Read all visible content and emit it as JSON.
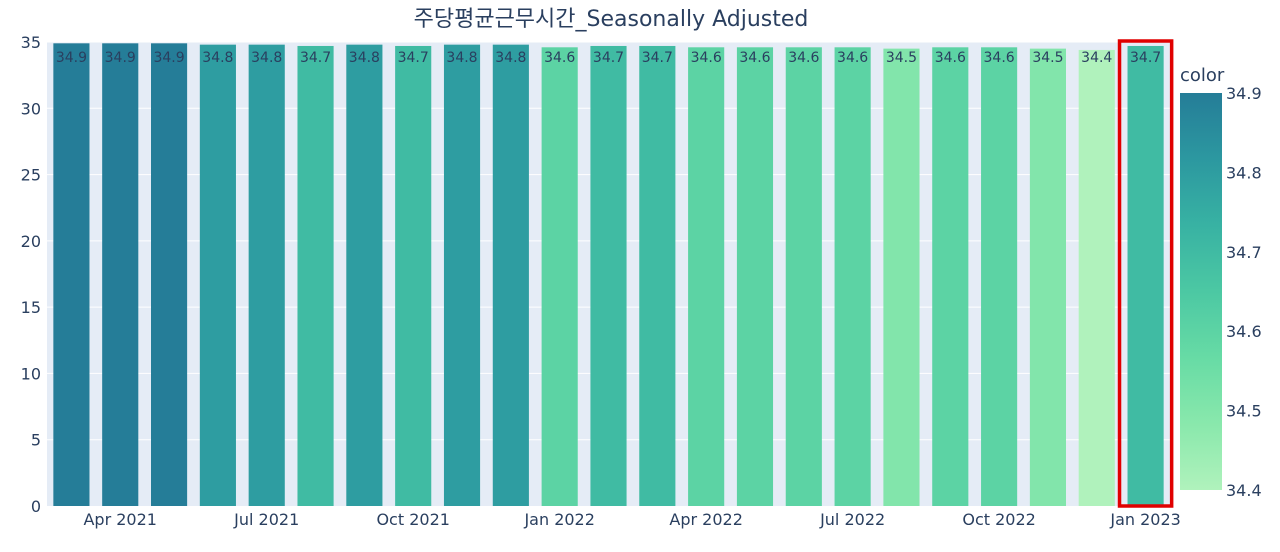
{
  "chart_data": {
    "type": "bar",
    "title": "주당평균근무시간_Seasonally Adjusted",
    "xlabel": "",
    "ylabel": "",
    "categories": [
      "2021-03",
      "2021-04",
      "2021-05",
      "2021-06",
      "2021-07",
      "2021-08",
      "2021-09",
      "2021-10",
      "2021-11",
      "2021-12",
      "2022-01",
      "2022-02",
      "2022-03",
      "2022-04",
      "2022-05",
      "2022-06",
      "2022-07",
      "2022-08",
      "2022-09",
      "2022-10",
      "2022-11",
      "2022-12",
      "2023-01"
    ],
    "values": [
      34.9,
      34.9,
      34.9,
      34.8,
      34.8,
      34.7,
      34.8,
      34.7,
      34.8,
      34.8,
      34.6,
      34.7,
      34.7,
      34.6,
      34.6,
      34.6,
      34.6,
      34.5,
      34.6,
      34.6,
      34.5,
      34.4,
      34.7
    ],
    "data_labels": [
      "34.9",
      "34.9",
      "34.9",
      "34.8",
      "34.8",
      "34.7",
      "34.8",
      "34.7",
      "34.8",
      "34.8",
      "34.6",
      "34.7",
      "34.7",
      "34.6",
      "34.6",
      "34.6",
      "34.6",
      "34.5",
      "34.6",
      "34.6",
      "34.5",
      "34.4",
      "34.7"
    ],
    "ylim": [
      0,
      35
    ],
    "y_ticks": [
      "0",
      "5",
      "10",
      "15",
      "20",
      "25",
      "30",
      "35"
    ],
    "y_tick_values": [
      0,
      5,
      10,
      15,
      20,
      25,
      30,
      35
    ],
    "x_ticks": [
      "Apr 2021",
      "Jul 2021",
      "Oct 2021",
      "Jan 2022",
      "Apr 2022",
      "Jul 2022",
      "Oct 2022",
      "Jan 2023"
    ],
    "x_tick_categories": [
      "2021-04",
      "2021-07",
      "2021-10",
      "2022-01",
      "2022-04",
      "2022-07",
      "2022-10",
      "2023-01"
    ],
    "grid": true,
    "highlighted_category": "2023-01",
    "highlight_color": "#e00000",
    "plot_bg": "#e5ecf6",
    "colorbar": {
      "title": "color",
      "range": [
        34.4,
        34.9
      ],
      "ticks": [
        "34.4",
        "34.5",
        "34.6",
        "34.7",
        "34.8",
        "34.9"
      ],
      "tick_values": [
        34.4,
        34.5,
        34.6,
        34.7,
        34.8,
        34.9
      ],
      "scale": [
        "#b0f2bc",
        "#89e8ac",
        "#67dba5",
        "#4cc8a3",
        "#38b2a3",
        "#2c98a0",
        "#257d98"
      ]
    }
  }
}
